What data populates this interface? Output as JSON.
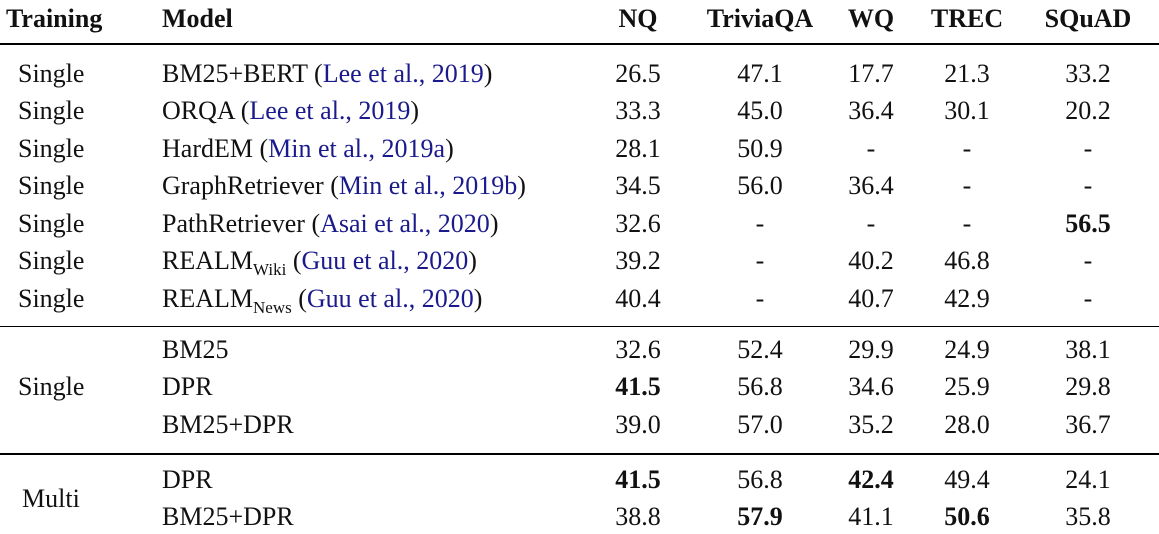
{
  "headers": {
    "training": "Training",
    "model": "Model",
    "nq": "NQ",
    "triviaqa": "TriviaQA",
    "wq": "WQ",
    "trec": "TREC",
    "squad": "SQuAD"
  },
  "rows": [
    {
      "training": "Single",
      "model": "BM25+BERT",
      "model_sub": "",
      "cite": "Lee et al., 2019",
      "nq": "26.5",
      "triviaqa": "47.1",
      "wq": "17.7",
      "trec": "21.3",
      "squad": "33.2"
    },
    {
      "training": "Single",
      "model": "ORQA",
      "model_sub": "",
      "cite": "Lee et al., 2019",
      "nq": "33.3",
      "triviaqa": "45.0",
      "wq": "36.4",
      "trec": "30.1",
      "squad": "20.2"
    },
    {
      "training": "Single",
      "model": "HardEM",
      "model_sub": "",
      "cite": "Min et al., 2019a",
      "nq": "28.1",
      "triviaqa": "50.9",
      "wq": "-",
      "trec": "-",
      "squad": "-"
    },
    {
      "training": "Single",
      "model": "GraphRetriever",
      "model_sub": "",
      "cite": "Min et al., 2019b",
      "nq": "34.5",
      "triviaqa": "56.0",
      "wq": "36.4",
      "trec": "-",
      "squad": "-"
    },
    {
      "training": "Single",
      "model": "PathRetriever",
      "model_sub": "",
      "cite": "Asai et al., 2020",
      "nq": "32.6",
      "triviaqa": "-",
      "wq": "-",
      "trec": "-",
      "squad": "56.5"
    },
    {
      "training": "Single",
      "model": "REALM",
      "model_sub": "Wiki",
      "cite": "Guu et al., 2020",
      "nq": "39.2",
      "triviaqa": "-",
      "wq": "40.2",
      "trec": "46.8",
      "squad": "-"
    },
    {
      "training": "Single",
      "model": "REALM",
      "model_sub": "News",
      "cite": "Guu et al., 2020",
      "nq": "40.4",
      "triviaqa": "-",
      "wq": "40.7",
      "trec": "42.9",
      "squad": "-"
    },
    {
      "training": "",
      "model": "BM25",
      "model_sub": "",
      "cite": "",
      "nq": "32.6",
      "triviaqa": "52.4",
      "wq": "29.9",
      "trec": "24.9",
      "squad": "38.1"
    },
    {
      "training": "",
      "model": "DPR",
      "model_sub": "",
      "cite": "",
      "nq": "41.5",
      "triviaqa": "56.8",
      "wq": "34.6",
      "trec": "25.9",
      "squad": "29.8"
    },
    {
      "training": "",
      "model": "BM25+DPR",
      "model_sub": "",
      "cite": "",
      "nq": "39.0",
      "triviaqa": "57.0",
      "wq": "35.2",
      "trec": "28.0",
      "squad": "36.7"
    },
    {
      "training": "",
      "model": "DPR",
      "model_sub": "",
      "cite": "",
      "nq": "41.5",
      "triviaqa": "56.8",
      "wq": "42.4",
      "trec": "49.4",
      "squad": "24.1"
    },
    {
      "training": "",
      "model": "BM25+DPR",
      "model_sub": "",
      "cite": "",
      "nq": "38.8",
      "triviaqa": "57.9",
      "wq": "41.1",
      "trec": "50.6",
      "squad": "35.8"
    }
  ],
  "group_labels": {
    "single": "Single",
    "multi": "Multi"
  },
  "bold": [
    {
      "row": 4,
      "col": "squad"
    },
    {
      "row": 8,
      "col": "nq"
    },
    {
      "row": 10,
      "col": "nq"
    },
    {
      "row": 10,
      "col": "wq"
    },
    {
      "row": 11,
      "col": "triviaqa"
    },
    {
      "row": 11,
      "col": "trec"
    }
  ]
}
